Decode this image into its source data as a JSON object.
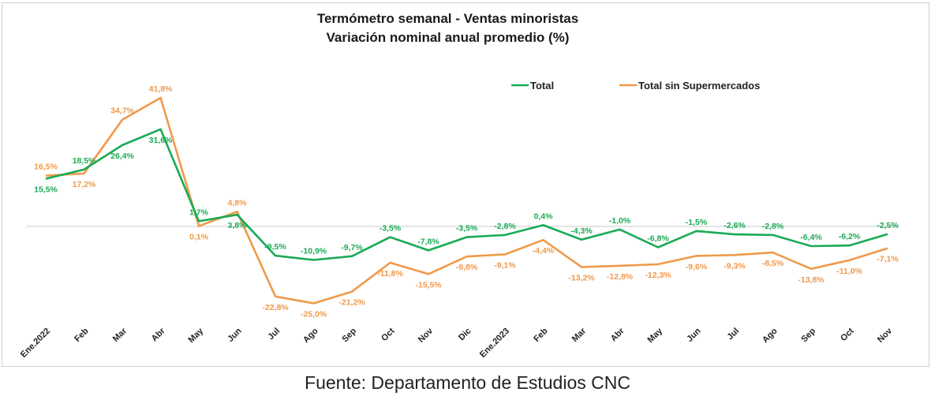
{
  "chart_data": {
    "type": "line",
    "title": "Termómetro semanal - Ventas minoristas",
    "subtitle": "Variación nominal anual promedio (%)",
    "categories": [
      "Ene.2022",
      "Feb",
      "Mar",
      "Abr",
      "May",
      "Jun",
      "Jul",
      "Ago",
      "Sep",
      "Oct",
      "Nov",
      "Dic",
      "Ene.2023",
      "Feb",
      "Mar",
      "Abr",
      "May",
      "Jun",
      "Jul",
      "Ago",
      "Sep",
      "Oct",
      "Nov"
    ],
    "series": [
      {
        "name": "Total",
        "color": "#1aaa55",
        "values": [
          15.5,
          18.5,
          26.4,
          31.6,
          1.7,
          3.8,
          -9.5,
          -10.9,
          -9.7,
          -3.5,
          -7.8,
          -3.5,
          -2.8,
          0.4,
          -4.3,
          -1.0,
          -6.8,
          -1.5,
          -2.6,
          -2.8,
          -6.4,
          -6.2,
          -2.5
        ],
        "labels": [
          "15,5%",
          "18,5%",
          "26,4%",
          "31,6%",
          "1,7%",
          "3,8%",
          "-9,5%",
          "-10,9%",
          "-9,7%",
          "-3,5%",
          "-7,8%",
          "-3,5%",
          "-2,8%",
          "0,4%",
          "-4,3%",
          "-1,0%",
          "-6,8%",
          "-1,5%",
          "-2,6%",
          "-2,8%",
          "-6,4%",
          "-6,2%",
          "-2,5%"
        ]
      },
      {
        "name": "Total sin Supermercados",
        "color": "#f0994a",
        "values": [
          16.5,
          17.2,
          34.7,
          41.8,
          0.1,
          4.8,
          -22.8,
          -25.0,
          -21.2,
          -11.8,
          -15.5,
          -9.8,
          -9.1,
          -4.4,
          -13.2,
          -12.8,
          -12.3,
          -9.6,
          -9.3,
          -8.5,
          -13.8,
          -11.0,
          -7.1
        ],
        "labels": [
          "16,5%",
          "17,2%",
          "34,7%",
          "41,8%",
          "0,1%",
          "4,8%",
          "-22,8%",
          "-25,0%",
          "-21,2%",
          "-11,8%",
          "-15,5%",
          "-9,8%",
          "-9,1%",
          "-4,4%",
          "-13,2%",
          "-12,8%",
          "-12,3%",
          "-9,6%",
          "-9,3%",
          "-8,5%",
          "-13,8%",
          "-11,0%",
          "-7,1%"
        ]
      }
    ],
    "ylim": [
      -50,
      60
    ],
    "grid": false,
    "legend_position": "top-right"
  },
  "source": "Fuente: Departamento de Estudios CNC"
}
